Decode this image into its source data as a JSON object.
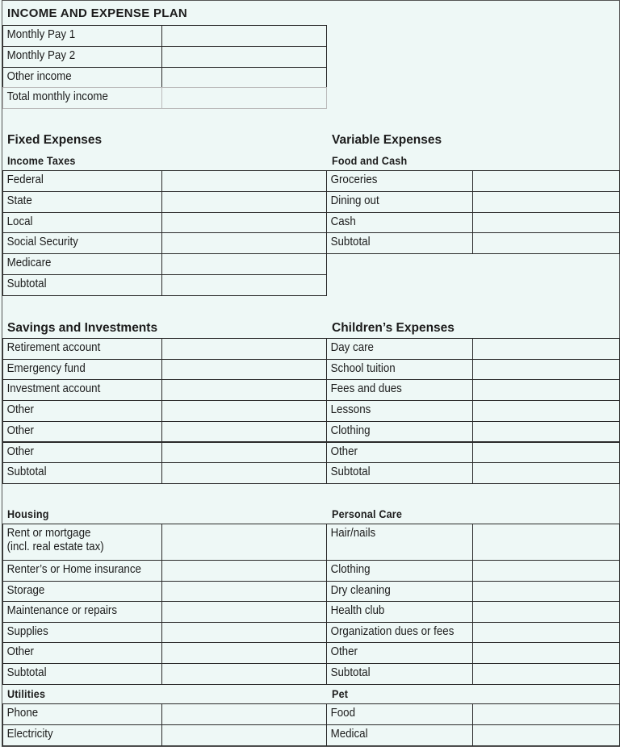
{
  "title": "INCOME AND EXPENSE PLAN",
  "income": {
    "rows": [
      "Monthly Pay 1",
      "Monthly Pay 2",
      "Other income",
      "Total monthly income"
    ]
  },
  "fixed_expenses": {
    "heading": "Fixed Expenses",
    "income_taxes": {
      "heading": "Income Taxes",
      "rows": [
        "Federal",
        "State",
        "Local",
        "Social Security",
        "Medicare",
        "Subtotal"
      ]
    },
    "savings": {
      "heading": "Savings and Investments",
      "rows": [
        "Retirement account",
        "Emergency fund",
        "Investment account",
        "Other",
        "Other",
        "Other",
        "Subtotal"
      ]
    },
    "housing": {
      "heading": "Housing",
      "rows": [
        "Rent or mortgage\n(incl. real estate tax)",
        "Renter’s or Home insurance",
        "Storage",
        "Maintenance or repairs",
        "Supplies",
        "Other",
        "Subtotal"
      ]
    },
    "utilities": {
      "heading": "Utilities",
      "rows": [
        "Phone",
        "Electricity"
      ]
    }
  },
  "variable_expenses": {
    "heading": "Variable Expenses",
    "food_and_cash": {
      "heading": "Food and Cash",
      "rows": [
        "Groceries",
        "Dining out",
        "Cash",
        "Subtotal"
      ]
    },
    "children": {
      "heading": "Children’s Expenses",
      "rows": [
        "Day care",
        "School tuition",
        "Fees and dues",
        "Lessons",
        "Clothing",
        "Other",
        "Subtotal"
      ]
    },
    "personal_care": {
      "heading": "Personal Care",
      "rows": [
        "Hair/nails",
        "Clothing",
        "Dry cleaning",
        "Health club",
        "Organization dues or fees",
        "Other",
        "Subtotal"
      ]
    },
    "pet": {
      "heading": "Pet",
      "rows": [
        "Food",
        "Medical"
      ]
    }
  },
  "colors": {
    "background": "#eef8f6",
    "lines": "#2a2a2a"
  }
}
